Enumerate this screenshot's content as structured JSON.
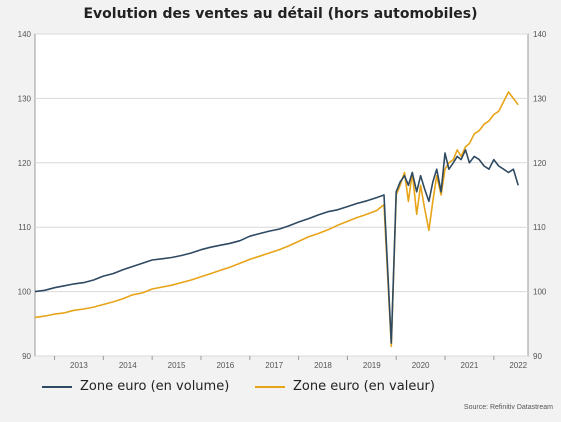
{
  "title": "Evolution des ventes au détail (hors automobiles)",
  "source": "Source: Refinitiv Datastream",
  "colors": {
    "volume": "#2e4a62",
    "valeur": "#e8a418",
    "grid": "#d9d9d9",
    "axis": "#9a9a9a",
    "plot_bg": "#ffffff"
  },
  "chart_data": {
    "type": "line",
    "title": "Evolution des ventes au détail (hors automobiles)",
    "xlabel": "",
    "ylabel": "",
    "xlim": [
      2012.6,
      2022.7
    ],
    "ylim": [
      90,
      140
    ],
    "yticks": [
      90,
      100,
      110,
      120,
      130,
      140
    ],
    "xticks": [
      "2013",
      "2014",
      "2015",
      "2016",
      "2017",
      "2018",
      "2019",
      "2020",
      "2021",
      "2022"
    ],
    "grid": true,
    "legend_position": "bottom",
    "series": [
      {
        "name": "Zone euro (en volume)",
        "x": [
          2012.6,
          2012.8,
          2013.0,
          2013.2,
          2013.4,
          2013.6,
          2013.8,
          2014.0,
          2014.2,
          2014.4,
          2014.6,
          2014.8,
          2015.0,
          2015.2,
          2015.4,
          2015.6,
          2015.8,
          2016.0,
          2016.2,
          2016.4,
          2016.6,
          2016.8,
          2017.0,
          2017.2,
          2017.4,
          2017.6,
          2017.8,
          2018.0,
          2018.2,
          2018.4,
          2018.6,
          2018.8,
          2019.0,
          2019.2,
          2019.4,
          2019.6,
          2019.75,
          2019.9,
          2020.0,
          2020.08,
          2020.17,
          2020.25,
          2020.33,
          2020.42,
          2020.5,
          2020.58,
          2020.67,
          2020.75,
          2020.83,
          2020.92,
          2021.0,
          2021.08,
          2021.17,
          2021.25,
          2021.33,
          2021.42,
          2021.5,
          2021.6,
          2021.7,
          2021.8,
          2021.9,
          2022.0,
          2022.1,
          2022.2,
          2022.3,
          2022.4,
          2022.5
        ],
        "values": [
          100.0,
          100.2,
          100.6,
          100.9,
          101.2,
          101.4,
          101.8,
          102.4,
          102.8,
          103.4,
          103.9,
          104.4,
          104.9,
          105.1,
          105.3,
          105.6,
          106.0,
          106.5,
          106.9,
          107.2,
          107.5,
          107.9,
          108.6,
          109.0,
          109.4,
          109.7,
          110.2,
          110.8,
          111.3,
          111.9,
          112.4,
          112.7,
          113.2,
          113.7,
          114.1,
          114.6,
          115.0,
          92.0,
          115.5,
          117.0,
          118.0,
          116.5,
          118.5,
          115.5,
          118.0,
          116.0,
          114.0,
          117.0,
          119.0,
          115.5,
          121.5,
          119.0,
          120.0,
          121.0,
          120.5,
          122.0,
          120.0,
          121.0,
          120.5,
          119.5,
          119.0,
          120.5,
          119.5,
          119.0,
          118.5,
          119.0,
          116.5
        ]
      },
      {
        "name": "Zone euro (en valeur)",
        "x": [
          2012.6,
          2012.8,
          2013.0,
          2013.2,
          2013.4,
          2013.6,
          2013.8,
          2014.0,
          2014.2,
          2014.4,
          2014.6,
          2014.8,
          2015.0,
          2015.2,
          2015.4,
          2015.6,
          2015.8,
          2016.0,
          2016.2,
          2016.4,
          2016.6,
          2016.8,
          2017.0,
          2017.2,
          2017.4,
          2017.6,
          2017.8,
          2018.0,
          2018.2,
          2018.4,
          2018.6,
          2018.8,
          2019.0,
          2019.2,
          2019.4,
          2019.6,
          2019.75,
          2019.9,
          2020.0,
          2020.08,
          2020.17,
          2020.25,
          2020.33,
          2020.42,
          2020.5,
          2020.58,
          2020.67,
          2020.75,
          2020.83,
          2020.92,
          2021.0,
          2021.08,
          2021.17,
          2021.25,
          2021.33,
          2021.42,
          2021.5,
          2021.6,
          2021.7,
          2021.8,
          2021.9,
          2022.0,
          2022.1,
          2022.2,
          2022.3,
          2022.4,
          2022.5
        ],
        "values": [
          96.0,
          96.2,
          96.5,
          96.7,
          97.1,
          97.3,
          97.6,
          98.0,
          98.4,
          98.9,
          99.5,
          99.8,
          100.4,
          100.7,
          101.0,
          101.4,
          101.8,
          102.3,
          102.8,
          103.3,
          103.8,
          104.4,
          105.0,
          105.5,
          106.0,
          106.5,
          107.1,
          107.8,
          108.5,
          109.0,
          109.6,
          110.3,
          110.9,
          111.5,
          112.0,
          112.6,
          113.5,
          91.5,
          115.0,
          116.5,
          118.5,
          114.0,
          118.5,
          112.0,
          116.5,
          113.0,
          109.5,
          114.0,
          118.0,
          115.0,
          119.0,
          120.0,
          120.5,
          122.0,
          121.0,
          122.5,
          123.0,
          124.5,
          125.0,
          126.0,
          126.5,
          127.5,
          128.0,
          129.5,
          131.0,
          130.0,
          129.0
        ]
      }
    ]
  }
}
